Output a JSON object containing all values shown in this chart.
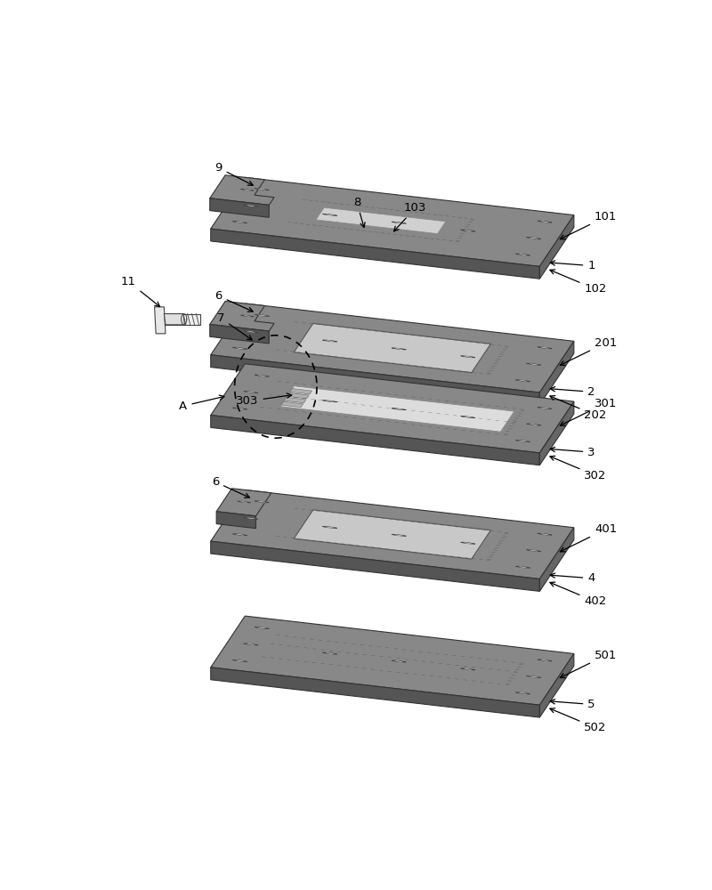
{
  "bg_color": "#ffffff",
  "plate_top_color": "#888888",
  "plate_front_color": "#555555",
  "plate_right_color": "#666666",
  "dot_color": "#444444",
  "hole_outer": "#aaaaaa",
  "hole_inner": "#ffffff",
  "cut_color": "#bbbbbb",
  "sensor_color": "#d8d8d8",
  "slot_color": "#d0d0d0",
  "notch_color": "#777777",
  "bolt_color": "#e0e0e0"
}
